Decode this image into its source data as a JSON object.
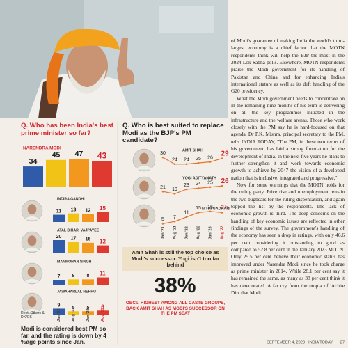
{
  "article": {
    "paragraphs": [
      "of Modi's guarantee of making India the world's third-largest economy is a chief factor that the MOTN respondents think will help the BJP the most in the 2024 Lok Sabha polls. Elsewhere, MOTN respondents praise the Modi government for its handling of Pakistan and China and for enhancing India's international stature as well as its deft handling of the G20 presidency.",
      "What the Modi government needs to concentrate on in the remaining nine months of his term is delivering on all the key programmes initiated in the infrastructure and the welfare arenas. Those who work closely with the PM say he is hard-focused on that agenda. Dr P.K. Mishra, principal secretary to the PM, tells INDIA TODAY, \"The PM, in these two terms of his government, has laid a strong foundation for the development of India. In the next five years he plans to further strengthen it and work towards economic growth to achieve by 2047 the vision of a developed nation that is inclusive, integrated and progressive.\"",
      "Now for some warnings that the MOTN holds for the ruling party. Price rise and unemployment remain the two bugbears for the ruling dispensation, and again topped the list by the respondents. The lack of economic growth is third. The deep concerns on the handling of key economic issues are reflected in other findings of the survey. The government's handling of the economy has seen a drop in ratings, with only 46.6 per cent considering it outstanding to good as compared to 52.8 per cent in the January 2023 MOTN. Only 29.5 per cent believe their economic status has improved under Narendra Modi since he took charge as prime minister in 2014. While 28.1 per cent say it has remained the same, as many as 38 per cent think it has deteriorated. A far cry from the utopia of 'Achhe Din' that Modi"
    ]
  },
  "best_pm": {
    "question": "Q. Who has been India's best prime minister so far?",
    "periods": [
      "Jan '22",
      "Aug '22",
      "Jan '23",
      "Aug '23"
    ],
    "colors": [
      "#2f5ba8",
      "#f1c316",
      "#f2981f",
      "#df3a2f"
    ],
    "leaders": [
      {
        "name": "NARENDRA MODI",
        "values": [
          34,
          45,
          47,
          43
        ]
      },
      {
        "name": "INDIRA GANDHI",
        "values": [
          11,
          13,
          12,
          15
        ]
      },
      {
        "name": "ATAL BIHARI VAJPAYEE",
        "values": [
          20,
          17,
          16,
          12
        ]
      },
      {
        "name": "MANMOHAN SINGH",
        "values": [
          7,
          8,
          8,
          11
        ]
      },
      {
        "name": "JAWAHARLAL NEHRU",
        "values": [
          9,
          5,
          5,
          6
        ]
      }
    ],
    "note": "Rest: Others & DK/CS",
    "caption": "Modi is considered best PM so far, and the rating is down by 4 %age points since Jan."
  },
  "successor": {
    "question": "Q. Who is best suited to replace Modi as the BJP's PM candidate?",
    "periods": [
      "Jan '21",
      "Aug '21",
      "Jan '22",
      "Aug '22",
      "Jan '23",
      "Aug '23"
    ],
    "line_color": "#e8742a",
    "leaders": [
      {
        "name": "AMIT SHAH",
        "values": [
          30,
          24,
          24,
          25,
          26,
          29
        ]
      },
      {
        "name": "YOGI ADITYANATH",
        "values": [
          21,
          19,
          23,
          24,
          25,
          26
        ]
      },
      {
        "name": "NITIN GADKARI",
        "values": [
          5,
          7,
          11,
          15,
          16,
          15
        ]
      }
    ],
    "caption": "Amit Shah is still the top choice as Modi's successor. Yogi isn't too far behind",
    "highlight": "38%",
    "highlight_text": "OBCs, HIGHEST AMONG ALL CASTE GROUPS, BACK AMIT SHAH AS MODI'S SUCCESSOR ON THE PM SEAT"
  },
  "footer": {
    "date": "SEPTEMBER 4, 2023",
    "magazine": "INDIA TODAY",
    "page": "27"
  }
}
